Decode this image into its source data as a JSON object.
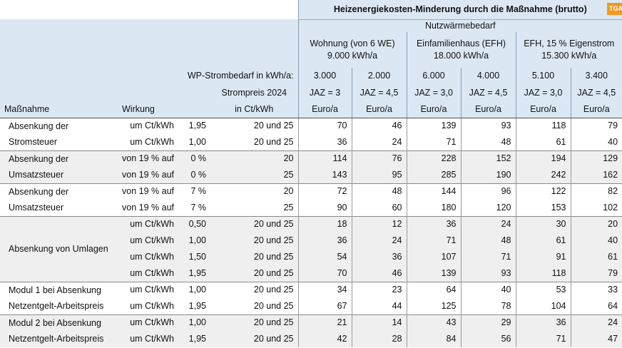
{
  "header": {
    "title": "Heizenergiekosten-Minderung durch die Maßnahme (brutto)",
    "logo": "TGA",
    "demand_heading": "Nutzwärmebedarf",
    "building_types": [
      {
        "name": "Wohnung (von 6 WE)",
        "demand": "9.000 kWh/a"
      },
      {
        "name": "Einfamilienhaus (EFH)",
        "demand": "18.000 kWh/a"
      },
      {
        "name": "EFH, 15 % Eigenstrom",
        "demand": "15.300 kWh/a"
      }
    ],
    "power_demand_label": "WP-Strombedarf in kWh/a:",
    "power_demand": [
      "3.000",
      "2.000",
      "6.000",
      "4.000",
      "5.100",
      "3.400"
    ],
    "price_label": [
      "Strompreis 2024",
      "in Ct/kWh"
    ],
    "jaz": [
      "JAZ = 3",
      "JAZ = 4,5",
      "JAZ = 3,0",
      "JAZ = 4,5",
      "JAZ = 3,0",
      "JAZ = 4,5"
    ],
    "measure": "Maßnahme",
    "effect": "Wirkung",
    "units": [
      "Euro/a",
      "Euro/a",
      "Euro/a",
      "Euro/a",
      "Euro/a",
      "Euro/a"
    ]
  },
  "table": {
    "groups": [
      {
        "label": "Absenkung der Stromsteuer",
        "rows": [
          {
            "effect": "um Ct/kWh",
            "amount": "1,95",
            "price": "20 und 25",
            "values": [
              70,
              46,
              139,
              93,
              118,
              79
            ]
          },
          {
            "effect": "um Ct/kWh",
            "amount": "1,00",
            "price": "20 und 25",
            "values": [
              36,
              24,
              71,
              48,
              61,
              40
            ]
          }
        ]
      },
      {
        "label": "Absenkung der Umsatzsteuer",
        "rows": [
          {
            "effect": "von 19 % auf",
            "amount": "0 %",
            "price": "20",
            "values": [
              114,
              76,
              228,
              152,
              194,
              129
            ]
          },
          {
            "effect": "von 19 % auf",
            "amount": "0 %",
            "price": "25",
            "values": [
              143,
              95,
              285,
              190,
              242,
              162
            ]
          }
        ]
      },
      {
        "label": "Absenkung der Umsatzsteuer",
        "rows": [
          {
            "effect": "von 19 % auf",
            "amount": "7 %",
            "price": "20",
            "values": [
              72,
              48,
              144,
              96,
              122,
              82
            ]
          },
          {
            "effect": "von 19 % auf",
            "amount": "7 %",
            "price": "25",
            "values": [
              90,
              60,
              180,
              120,
              153,
              102
            ]
          }
        ]
      },
      {
        "label": "Absenkung von Umlagen",
        "rows": [
          {
            "effect": "um Ct/kWh",
            "amount": "0,50",
            "price": "20 und 25",
            "values": [
              18,
              12,
              36,
              24,
              30,
              20
            ]
          },
          {
            "effect": "um Ct/kWh",
            "amount": "1,00",
            "price": "20 und 25",
            "values": [
              36,
              24,
              71,
              48,
              61,
              40
            ]
          },
          {
            "effect": "um Ct/kWh",
            "amount": "1,50",
            "price": "20 und 25",
            "values": [
              54,
              36,
              107,
              71,
              91,
              61
            ]
          },
          {
            "effect": "um Ct/kWh",
            "amount": "1,95",
            "price": "20 und 25",
            "values": [
              70,
              46,
              139,
              93,
              118,
              79
            ]
          }
        ]
      },
      {
        "label": "Modul 1 bei Absenkung Netzentgelt-Arbeitspreis",
        "rows": [
          {
            "effect": "um Ct/kWh",
            "amount": "1,00",
            "price": "20 und 25",
            "values": [
              34,
              23,
              64,
              40,
              53,
              33
            ]
          },
          {
            "effect": "um Ct/kWh",
            "amount": "1,95",
            "price": "20 und 25",
            "values": [
              67,
              44,
              125,
              78,
              104,
              64
            ]
          }
        ]
      },
      {
        "label": "Modul 2 bei Absenkung Netzentgelt-Arbeitspreis",
        "rows": [
          {
            "effect": "um Ct/kWh",
            "amount": "1,00",
            "price": "20 und 25",
            "values": [
              21,
              14,
              43,
              29,
              36,
              24
            ]
          },
          {
            "effect": "um Ct/kWh",
            "amount": "1,95",
            "price": "20 und 25",
            "values": [
              42,
              28,
              84,
              56,
              71,
              47
            ]
          }
        ]
      }
    ]
  }
}
